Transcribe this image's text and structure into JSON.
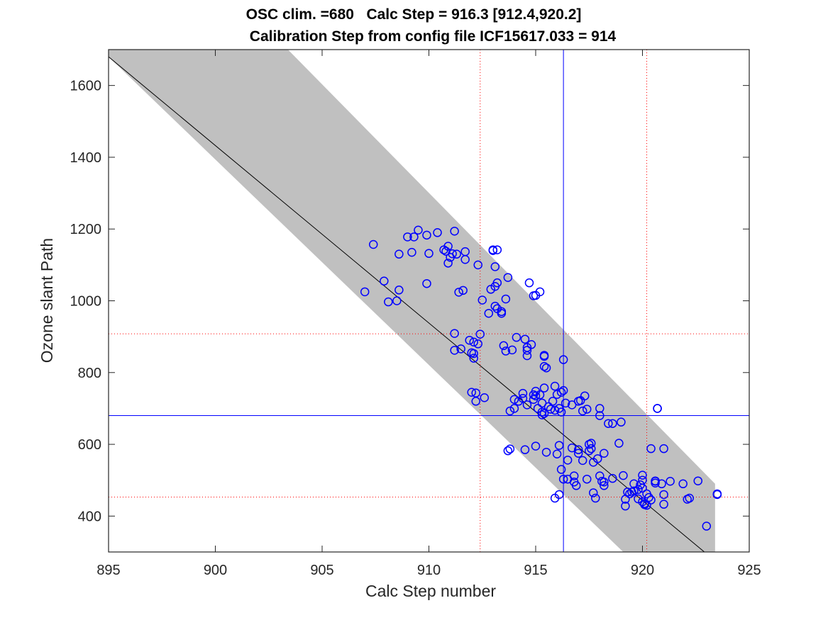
{
  "chart_data": {
    "type": "scatter",
    "title": [
      "OSC clim. =680   Calc Step = 916.3 [912.4,920.2]",
      "Calibration Step from config file ICF15617.033 = 914"
    ],
    "xlabel": "Calc Step number",
    "ylabel": "Ozone slant Path",
    "xlim": [
      895,
      925
    ],
    "ylim": [
      300,
      1700
    ],
    "xticks": [
      895,
      900,
      905,
      910,
      915,
      920,
      925
    ],
    "yticks": [
      400,
      600,
      800,
      1000,
      1200,
      1400,
      1600
    ],
    "grid": false,
    "fit_line": {
      "points": [
        [
          895,
          1680
        ],
        [
          923,
          295
        ]
      ],
      "color": "#000000"
    },
    "confidence_band": {
      "polygon": [
        [
          895,
          1700
        ],
        [
          903.4,
          1700
        ],
        [
          923.4,
          490
        ],
        [
          923.4,
          300
        ],
        [
          919.1,
          300
        ],
        [
          895,
          1680
        ]
      ],
      "color": "#c0c0c0"
    },
    "reference_lines": [
      {
        "orientation": "vertical",
        "value": 916.3,
        "style": "solid",
        "color": "#0000ff"
      },
      {
        "orientation": "horizontal",
        "value": 680,
        "style": "solid",
        "color": "#0000ff"
      },
      {
        "orientation": "vertical",
        "value": 912.4,
        "style": "dotted",
        "color": "#ff0000"
      },
      {
        "orientation": "vertical",
        "value": 920.2,
        "style": "dotted",
        "color": "#ff0000"
      },
      {
        "orientation": "horizontal",
        "value": 908,
        "style": "dotted",
        "color": "#ff0000"
      },
      {
        "orientation": "horizontal",
        "value": 453,
        "style": "dotted",
        "color": "#ff0000"
      }
    ],
    "marker_color": "#0000ff",
    "points": [
      [
        907.0,
        1025
      ],
      [
        907.4,
        1157
      ],
      [
        907.9,
        1055
      ],
      [
        908.1,
        997
      ],
      [
        908.5,
        1000
      ],
      [
        908.6,
        1030
      ],
      [
        908.6,
        1130
      ],
      [
        909.0,
        1178
      ],
      [
        909.2,
        1135
      ],
      [
        909.3,
        1178
      ],
      [
        909.5,
        1197
      ],
      [
        909.9,
        1183
      ],
      [
        909.9,
        1048
      ],
      [
        910.0,
        1132
      ],
      [
        910.4,
        1190
      ],
      [
        910.7,
        1142
      ],
      [
        910.8,
        1138
      ],
      [
        910.9,
        1152
      ],
      [
        910.9,
        1105
      ],
      [
        911.0,
        1121
      ],
      [
        911.1,
        1131
      ],
      [
        911.2,
        1194
      ],
      [
        911.3,
        1130
      ],
      [
        911.4,
        1024
      ],
      [
        911.7,
        1137
      ],
      [
        911.7,
        1115
      ],
      [
        911.6,
        1029
      ],
      [
        911.2,
        909
      ],
      [
        911.2,
        862
      ],
      [
        911.5,
        866
      ],
      [
        911.9,
        890
      ],
      [
        912.1,
        885
      ],
      [
        912.0,
        855
      ],
      [
        912.1,
        840
      ],
      [
        912.1,
        853
      ],
      [
        912.3,
        1100
      ],
      [
        912.3,
        880
      ],
      [
        912.4,
        907
      ],
      [
        912.0,
        745
      ],
      [
        912.2,
        743
      ],
      [
        912.2,
        720
      ],
      [
        912.6,
        730
      ],
      [
        912.5,
        1002
      ],
      [
        912.9,
        1032
      ],
      [
        912.8,
        965
      ],
      [
        913.1,
        1040
      ],
      [
        913.1,
        1095
      ],
      [
        913.1,
        985
      ],
      [
        913.0,
        1140
      ],
      [
        913.2,
        1050
      ],
      [
        913.2,
        978
      ],
      [
        913.4,
        970
      ],
      [
        913.4,
        965
      ],
      [
        913.6,
        1005
      ],
      [
        913.7,
        1065
      ],
      [
        913.5,
        875
      ],
      [
        913.6,
        860
      ],
      [
        913.8,
        693
      ],
      [
        913.7,
        582
      ],
      [
        913.8,
        587
      ],
      [
        913.9,
        863
      ],
      [
        914.0,
        700
      ],
      [
        914.0,
        725
      ],
      [
        914.1,
        898
      ],
      [
        914.2,
        720
      ],
      [
        914.4,
        728
      ],
      [
        914.4,
        742
      ],
      [
        914.6,
        710
      ],
      [
        914.5,
        893
      ],
      [
        914.6,
        862
      ],
      [
        914.6,
        847
      ],
      [
        914.5,
        585
      ],
      [
        914.6,
        870
      ],
      [
        914.7,
        1050
      ],
      [
        914.8,
        878
      ],
      [
        914.9,
        725
      ],
      [
        914.9,
        738
      ],
      [
        914.9,
        1014
      ],
      [
        915.0,
        1015
      ],
      [
        915.0,
        748
      ],
      [
        915.0,
        735
      ],
      [
        915.1,
        700
      ],
      [
        915.2,
        1025
      ],
      [
        915.0,
        595
      ],
      [
        915.2,
        738
      ],
      [
        915.3,
        690
      ],
      [
        915.3,
        715
      ],
      [
        915.3,
        682
      ],
      [
        915.4,
        757
      ],
      [
        915.4,
        845
      ],
      [
        915.4,
        848
      ],
      [
        915.4,
        686
      ],
      [
        915.4,
        817
      ],
      [
        915.5,
        578
      ],
      [
        915.5,
        813
      ],
      [
        915.6,
        705
      ],
      [
        915.7,
        698
      ],
      [
        915.8,
        720
      ],
      [
        915.9,
        695
      ],
      [
        915.9,
        762
      ],
      [
        916.0,
        739
      ],
      [
        915.9,
        450
      ],
      [
        916.0,
        573
      ],
      [
        916.1,
        597
      ],
      [
        916.1,
        700
      ],
      [
        916.2,
        745
      ],
      [
        916.2,
        690
      ],
      [
        916.2,
        530
      ],
      [
        916.1,
        460
      ],
      [
        916.3,
        503
      ],
      [
        916.3,
        836
      ],
      [
        916.3,
        750
      ],
      [
        916.4,
        715
      ],
      [
        916.5,
        556
      ],
      [
        916.5,
        503
      ],
      [
        916.7,
        590
      ],
      [
        916.7,
        710
      ],
      [
        916.8,
        512
      ],
      [
        916.8,
        495
      ],
      [
        916.9,
        485
      ],
      [
        917.0,
        720
      ],
      [
        917.0,
        585
      ],
      [
        917.0,
        575
      ],
      [
        917.1,
        722
      ],
      [
        917.2,
        693
      ],
      [
        917.2,
        555
      ],
      [
        917.4,
        503
      ],
      [
        917.3,
        735
      ],
      [
        917.4,
        698
      ],
      [
        917.5,
        582
      ],
      [
        917.5,
        600
      ],
      [
        917.6,
        603
      ],
      [
        917.6,
        588
      ],
      [
        917.7,
        550
      ],
      [
        917.7,
        465
      ],
      [
        917.8,
        450
      ],
      [
        917.9,
        560
      ],
      [
        918.0,
        512
      ],
      [
        918.0,
        680
      ],
      [
        918.0,
        700
      ],
      [
        918.1,
        497
      ],
      [
        918.2,
        495
      ],
      [
        918.2,
        485
      ],
      [
        918.2,
        575
      ],
      [
        918.4,
        658
      ],
      [
        918.6,
        658
      ],
      [
        918.6,
        505
      ],
      [
        918.9,
        603
      ],
      [
        919.0,
        662
      ],
      [
        919.1,
        513
      ],
      [
        919.2,
        447
      ],
      [
        919.2,
        428
      ],
      [
        919.3,
        467
      ],
      [
        919.4,
        462
      ],
      [
        919.5,
        467
      ],
      [
        919.6,
        490
      ],
      [
        919.6,
        470
      ],
      [
        919.8,
        448
      ],
      [
        919.8,
        474
      ],
      [
        919.9,
        487
      ],
      [
        920.0,
        500
      ],
      [
        920.0,
        514
      ],
      [
        920.0,
        478
      ],
      [
        920.0,
        440
      ],
      [
        920.1,
        432
      ],
      [
        920.1,
        435
      ],
      [
        920.2,
        430
      ],
      [
        920.2,
        462
      ],
      [
        920.3,
        452
      ],
      [
        920.4,
        445
      ],
      [
        920.4,
        588
      ],
      [
        920.6,
        498
      ],
      [
        920.6,
        492
      ],
      [
        920.6,
        497
      ],
      [
        920.7,
        700
      ],
      [
        920.7,
        700
      ],
      [
        920.9,
        490
      ],
      [
        921.0,
        588
      ],
      [
        921.0,
        460
      ],
      [
        921.0,
        433
      ],
      [
        921.3,
        497
      ],
      [
        921.9,
        490
      ],
      [
        922.1,
        447
      ],
      [
        922.2,
        450
      ],
      [
        922.6,
        498
      ],
      [
        923.0,
        372
      ],
      [
        923.5,
        460
      ],
      [
        923.5,
        462
      ],
      [
        913.0,
        1142
      ],
      [
        913.2,
        1142
      ]
    ]
  }
}
